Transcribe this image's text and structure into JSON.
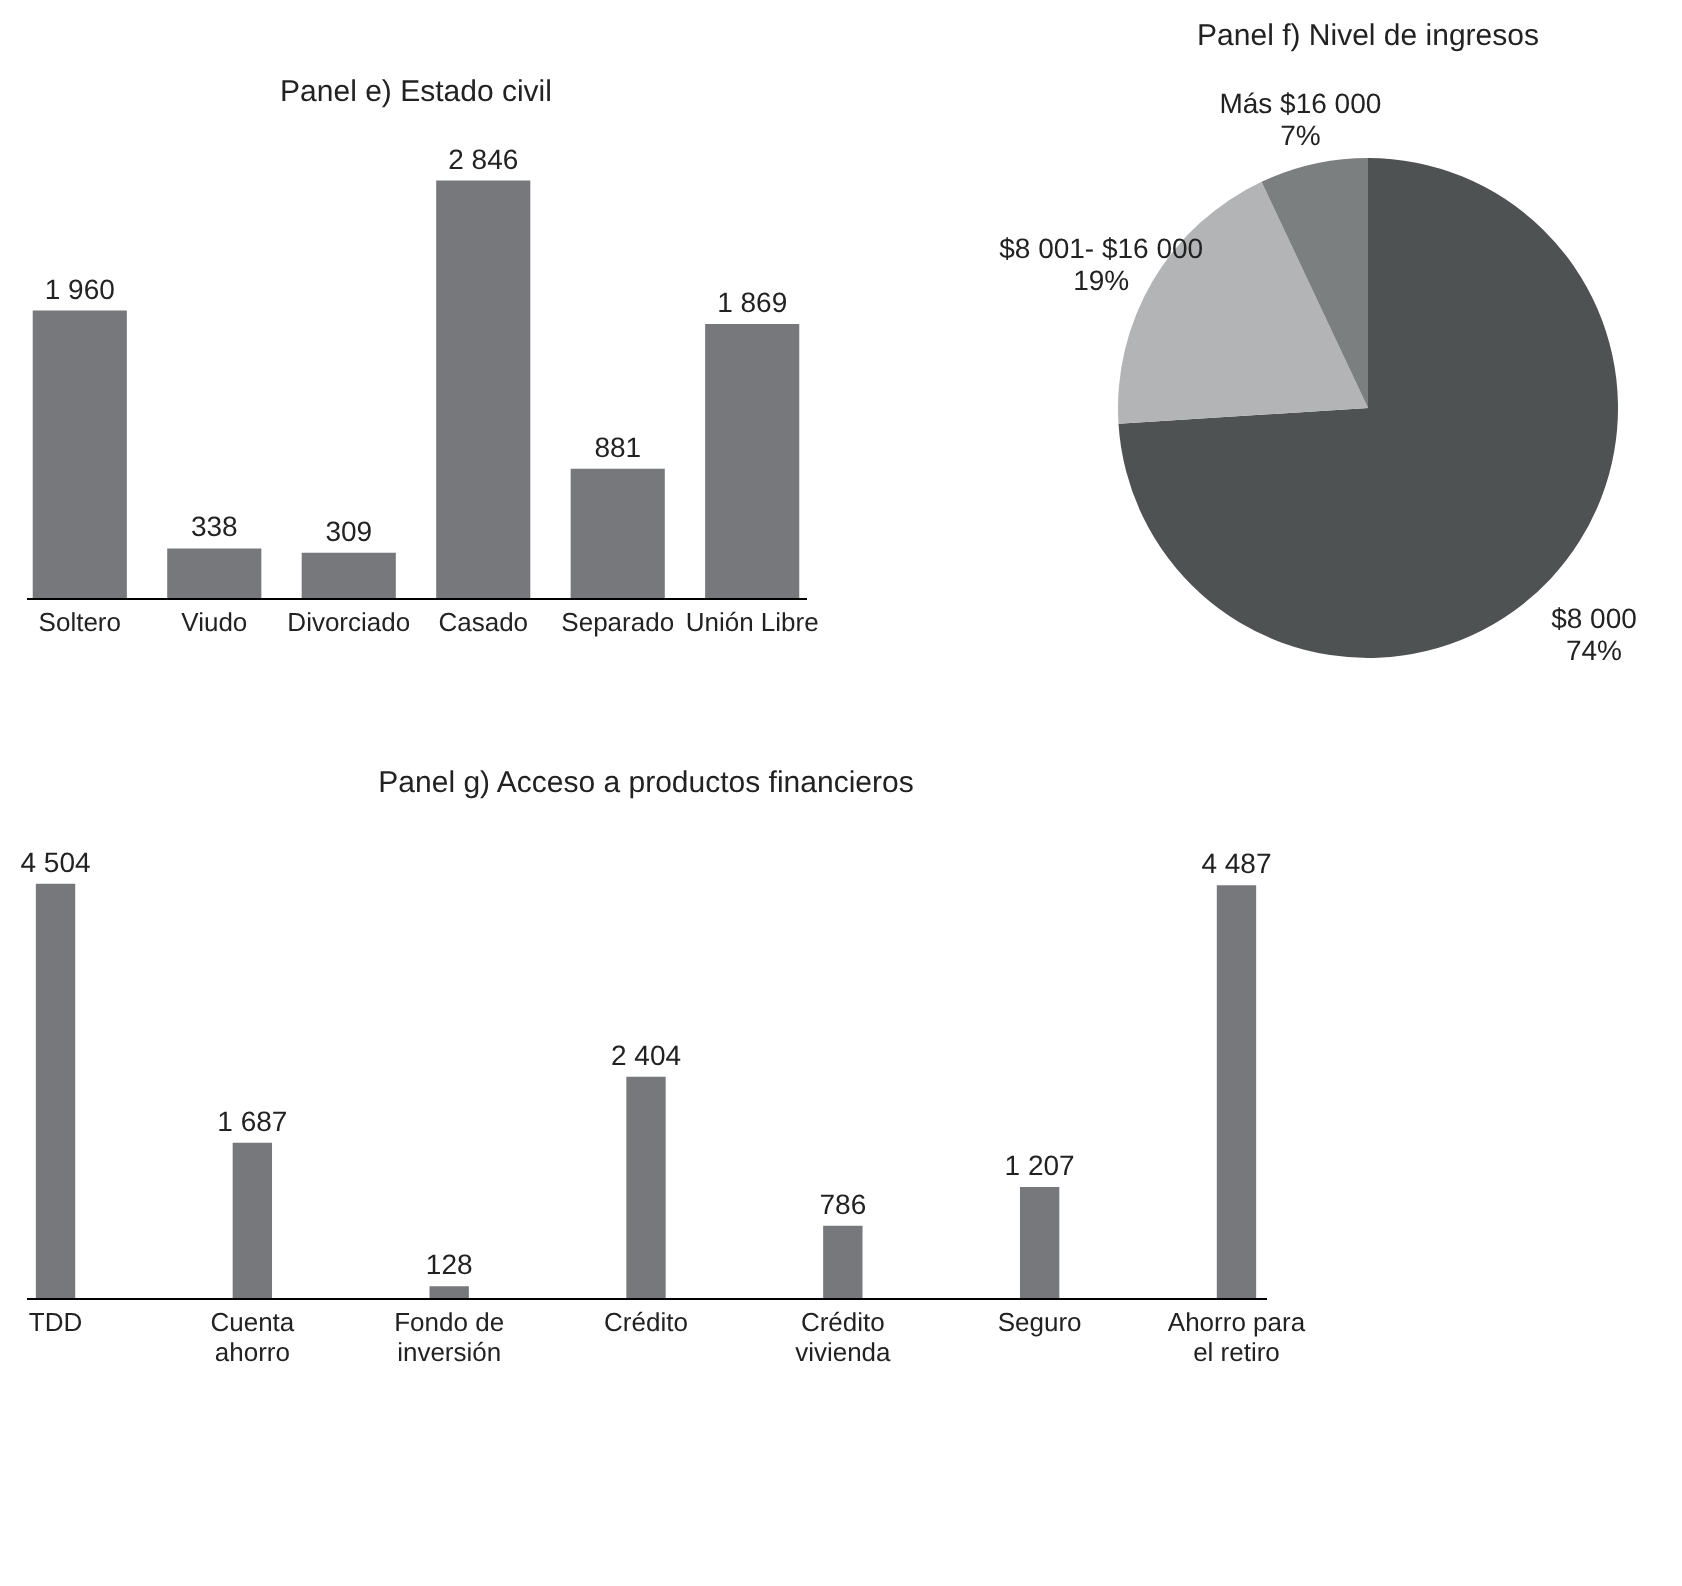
{
  "chart_data": [
    {
      "type": "bar",
      "title": "Panel e) Estado civil",
      "categories": [
        "Soltero",
        "Viudo",
        "Divorciado",
        "Casado",
        "Separado",
        "Unión Libre"
      ],
      "values": [
        1960,
        338,
        309,
        2846,
        881,
        1869
      ],
      "value_labels": [
        "1 960",
        "338",
        "309",
        "2 846",
        "881",
        "1 869"
      ],
      "color": "#76787b"
    },
    {
      "type": "pie",
      "title": "Panel f) Nivel de ingresos",
      "categories": [
        "$8 000",
        "$8 001- $16 000",
        "Más $16 000"
      ],
      "values": [
        74,
        19,
        7
      ],
      "value_labels": [
        "74%",
        "19%",
        "7%"
      ],
      "colors": [
        "#4f5253",
        "#b2b4b5",
        "#7c7f80"
      ]
    },
    {
      "type": "bar",
      "title": "Panel g) Acceso a productos financieros",
      "categories": [
        "TDD",
        "Cuenta ahorro",
        "Fondo de inversión",
        "Crédito",
        "Crédito vivienda",
        "Seguro",
        "Ahorro para el retiro"
      ],
      "values": [
        4504,
        1687,
        128,
        2404,
        786,
        1207,
        4487
      ],
      "value_labels": [
        "4 504",
        "1 687",
        "128",
        "2 404",
        "786",
        "1 207",
        "4 487"
      ],
      "color": "#76787b"
    }
  ]
}
